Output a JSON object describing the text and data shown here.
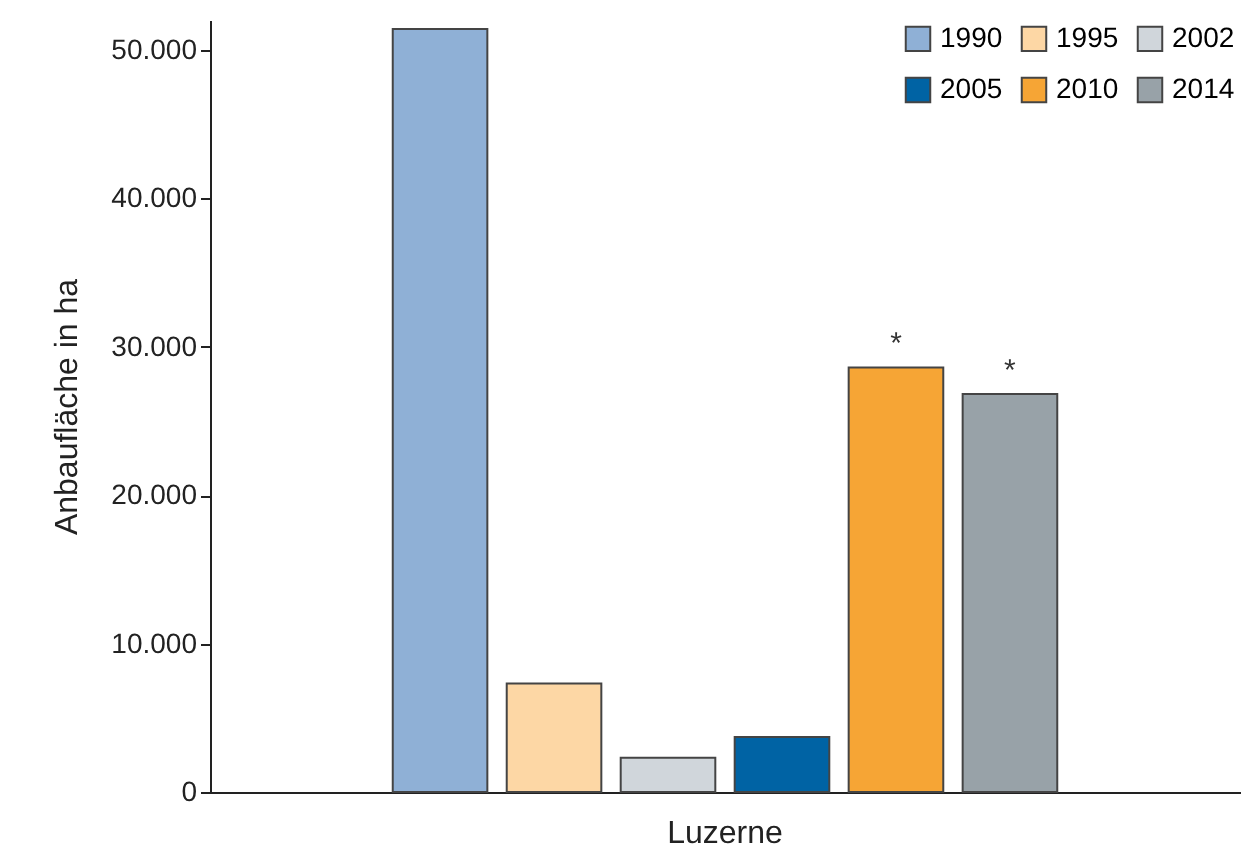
{
  "chart_data": {
    "type": "bar",
    "ylabel": "Anbaufläche in ha",
    "categories": [
      "Luzerne"
    ],
    "series": [
      {
        "name": "1990",
        "color": "#8fb0d6",
        "values": [
          51400
        ]
      },
      {
        "name": "1995",
        "color": "#fdd7a5",
        "values": [
          7300
        ]
      },
      {
        "name": "2002",
        "color": "#d0d6db",
        "values": [
          2300
        ]
      },
      {
        "name": "2005",
        "color": "#0063a4",
        "values": [
          3700
        ]
      },
      {
        "name": "2010",
        "color": "#f6a535",
        "values": [
          28600
        ]
      },
      {
        "name": "2014",
        "color": "#98a2a8",
        "values": [
          26800
        ]
      }
    ],
    "ylim": [
      0,
      52000
    ],
    "yticks": [
      {
        "value": 0,
        "label": "0"
      },
      {
        "value": 10000,
        "label": "10.000"
      },
      {
        "value": 20000,
        "label": "20.000"
      },
      {
        "value": 30000,
        "label": "30.000"
      },
      {
        "value": 40000,
        "label": "40.000"
      },
      {
        "value": 50000,
        "label": "50.000"
      }
    ],
    "annotations": [
      "*",
      "*"
    ],
    "grid": false,
    "legend": "top right"
  }
}
